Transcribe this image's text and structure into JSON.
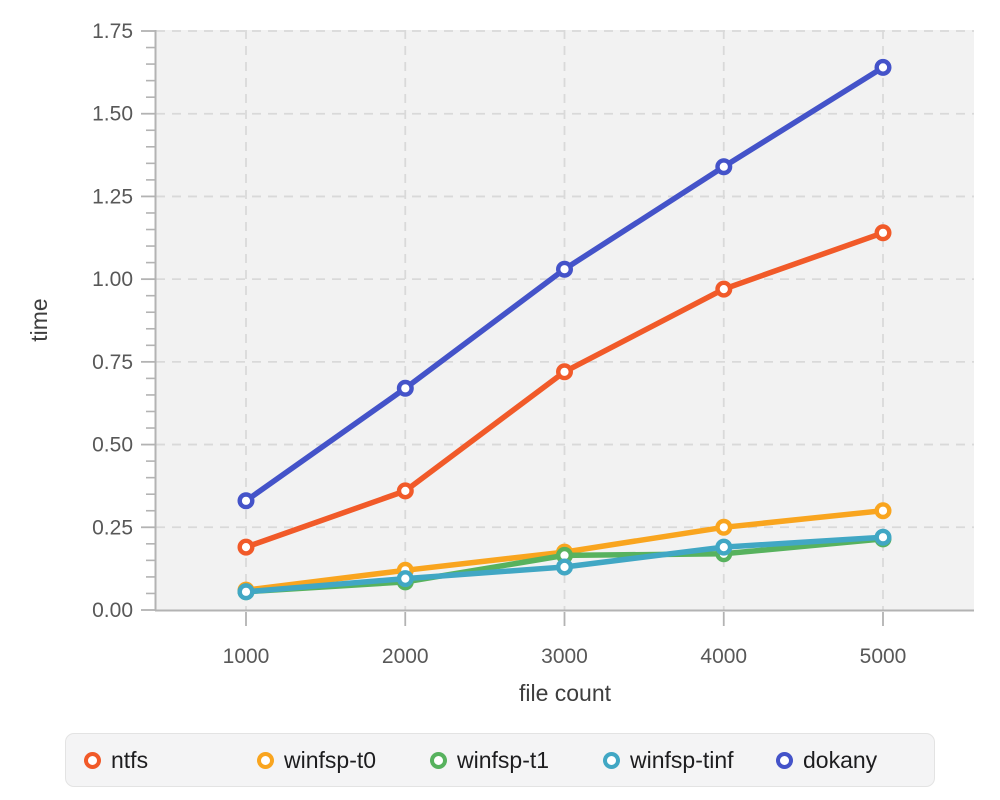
{
  "chart_data": {
    "type": "line",
    "title": "",
    "xlabel": "file count",
    "ylabel": "time",
    "x": [
      1000,
      2000,
      3000,
      4000,
      5000
    ],
    "series": [
      {
        "name": "ntfs",
        "color": "#f15a29",
        "values": [
          0.19,
          0.36,
          0.72,
          0.97,
          1.14
        ]
      },
      {
        "name": "winfsp-t0",
        "color": "#f9a51f",
        "values": [
          0.06,
          0.12,
          0.175,
          0.25,
          0.3
        ]
      },
      {
        "name": "winfsp-t1",
        "color": "#57b25e",
        "values": [
          0.055,
          0.085,
          0.165,
          0.17,
          0.215
        ]
      },
      {
        "name": "winfsp-tinf",
        "color": "#41a7c4",
        "values": [
          0.055,
          0.095,
          0.13,
          0.19,
          0.22
        ]
      },
      {
        "name": "dokany",
        "color": "#4453c9",
        "values": [
          0.33,
          0.67,
          1.03,
          1.34,
          1.64
        ]
      }
    ],
    "xlim": [
      1000,
      5000
    ],
    "ylim": [
      0,
      1.75
    ],
    "xticks": [
      1000,
      2000,
      3000,
      4000,
      5000
    ],
    "xtick_labels": [
      "1000",
      "2000",
      "3000",
      "4000",
      "5000"
    ],
    "yticks": [
      0,
      0.25,
      0.5,
      0.75,
      1.0,
      1.25,
      1.5,
      1.75
    ],
    "ytick_labels": [
      "0.00",
      "0.25",
      "0.50",
      "0.75",
      "1.00",
      "1.25",
      "1.50",
      "1.75"
    ],
    "y_minor_step": 0.05,
    "grid": true,
    "grid_style": "dashed",
    "marker": "open-circle",
    "legend_position": "bottom"
  },
  "style": {
    "plot_bg": "#f2f2f2",
    "grid_color": "#d9d9d9",
    "axis_color": "#b3b3b3",
    "tick_label_color": "#585858",
    "axis_title_color": "#3e3e3e",
    "legend_bg": "#f4f4f5",
    "legend_border": "#e3e3e3",
    "legend_text_color": "#1d1d1f"
  }
}
